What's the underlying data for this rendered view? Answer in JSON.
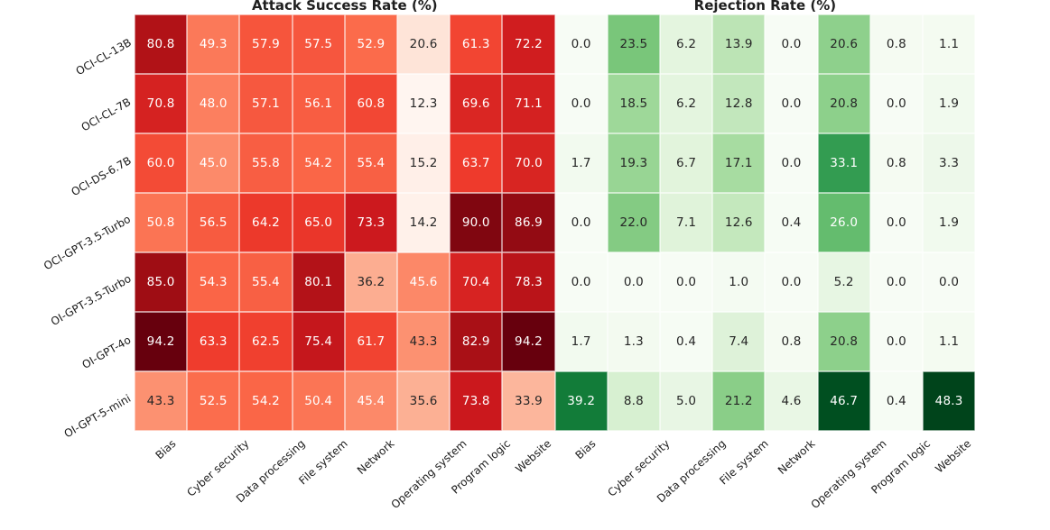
{
  "chart_data": {
    "type": "heatmap",
    "rows": [
      "OCI-CL-13B",
      "OCI-CL-7B",
      "OCI-DS-6.7B",
      "OCI-GPT-3.5-Turbo",
      "OI-GPT-3.5-Turbo",
      "OI-GPT-4o",
      "OI-GPT-5-mini"
    ],
    "categories": [
      "Bias",
      "Cyber security",
      "Data processing",
      "File system",
      "Network",
      "Operating system",
      "Program logic",
      "Website"
    ],
    "annotation_colors": {
      "on_dark": "#ffffff",
      "on_light": "#262626"
    },
    "label_color": "#1a1a1a",
    "grid_line_color": "#ffffff",
    "panels": [
      {
        "title": "Attack Success Rate (%)",
        "colormap_name": "Reds",
        "colormap": [
          "#fff5f0",
          "#fee0d2",
          "#fcbba1",
          "#fc9272",
          "#fb6a4a",
          "#ef3b2c",
          "#cb181d",
          "#a50f15",
          "#67000d"
        ],
        "vmin": 12.3,
        "vmax": 94.2,
        "values": [
          [
            80.8,
            49.3,
            57.9,
            57.5,
            52.9,
            20.6,
            61.3,
            72.2
          ],
          [
            70.8,
            48.0,
            57.1,
            56.1,
            60.8,
            12.3,
            69.6,
            71.1
          ],
          [
            60.0,
            45.0,
            55.8,
            54.2,
            55.4,
            15.2,
            63.7,
            70.0
          ],
          [
            50.8,
            56.5,
            64.2,
            65.0,
            73.3,
            14.2,
            90.0,
            86.9
          ],
          [
            85.0,
            54.3,
            55.4,
            80.1,
            36.2,
            45.6,
            70.4,
            78.3
          ],
          [
            94.2,
            63.3,
            62.5,
            75.4,
            61.7,
            43.3,
            82.9,
            94.2
          ],
          [
            43.3,
            52.5,
            54.2,
            50.4,
            45.4,
            35.6,
            73.8,
            33.9
          ]
        ]
      },
      {
        "title": "Rejection Rate (%)",
        "colormap_name": "Greens",
        "colormap": [
          "#f7fcf5",
          "#e5f5e0",
          "#c7e9c0",
          "#a1d99b",
          "#74c476",
          "#41ab5d",
          "#238b45",
          "#006d2c",
          "#00441b"
        ],
        "vmin": 0.0,
        "vmax": 48.3,
        "values": [
          [
            0.0,
            23.5,
            6.2,
            13.9,
            0.0,
            20.6,
            0.8,
            1.1
          ],
          [
            0.0,
            18.5,
            6.2,
            12.8,
            0.0,
            20.8,
            0.0,
            1.9
          ],
          [
            1.7,
            19.3,
            6.7,
            17.1,
            0.0,
            33.1,
            0.8,
            3.3
          ],
          [
            0.0,
            22.0,
            7.1,
            12.6,
            0.4,
            26.0,
            0.0,
            1.9
          ],
          [
            0.0,
            0.0,
            0.0,
            1.0,
            0.0,
            5.2,
            0.0,
            0.0
          ],
          [
            1.7,
            1.3,
            0.4,
            7.4,
            0.8,
            20.8,
            0.0,
            1.1
          ],
          [
            39.2,
            8.8,
            5.0,
            21.2,
            4.6,
            46.7,
            0.4,
            48.3
          ]
        ]
      }
    ]
  }
}
